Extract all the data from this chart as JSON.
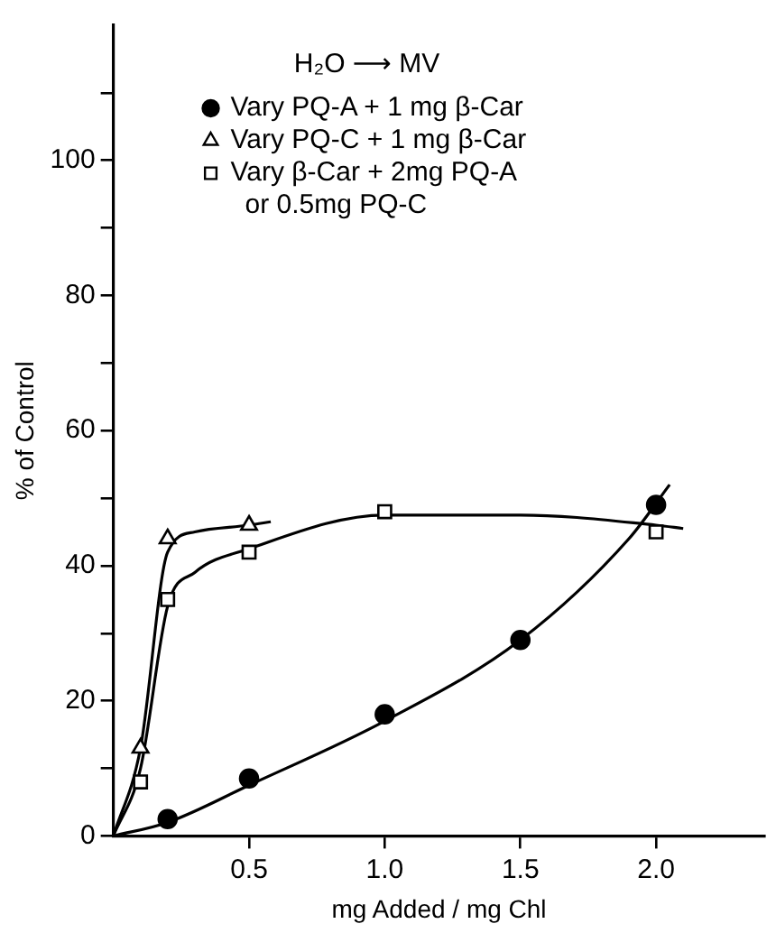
{
  "chart_data": {
    "type": "scatter",
    "xlabel": "mg Added / mg Chl",
    "ylabel": "% of Control",
    "legend_title": "H₂O ⟶ MV",
    "legend": "top",
    "grid": false,
    "xlim": [
      0,
      2.4
    ],
    "xticks": [
      0.5,
      {
        "value": 1,
        "label": "1.0"
      },
      1.5,
      {
        "value": 2,
        "label": "2.0"
      }
    ],
    "ylim": [
      0,
      120
    ],
    "yticks": [
      0,
      {
        "value": 10,
        "label": null
      },
      20,
      {
        "value": 30,
        "label": null
      },
      40,
      {
        "value": 50,
        "label": null
      },
      60,
      {
        "value": 70,
        "label": null
      },
      80,
      {
        "value": 90,
        "label": null
      },
      100,
      {
        "value": 110,
        "label": null
      }
    ],
    "series": [
      {
        "name": "Vary PQ-A + 1 mg β-Car",
        "type": "scatter",
        "marker": "circle",
        "color": "#000000",
        "x": [
          0.2,
          0.5,
          1.0,
          1.5,
          2.0
        ],
        "values": [
          2.5,
          8.5,
          18,
          29,
          49
        ]
      },
      {
        "name": "Vary PQ-C + 1 mg β-Car",
        "type": "scatter",
        "marker": "triangle",
        "color": "#000000",
        "x": [
          0.1,
          0.2,
          0.5
        ],
        "values": [
          13,
          44,
          46
        ]
      },
      {
        "name": "Vary β-Car + 2mg PQ-A or 0.5mg PQ-C",
        "type": "scatter",
        "marker": "square",
        "color": "#000000",
        "x": [
          0.1,
          0.2,
          0.5,
          1.0,
          2.0
        ],
        "values": [
          8,
          35,
          42,
          48,
          45
        ]
      },
      {
        "type": "line",
        "marker": "none",
        "color": "#000000",
        "x": [
          0,
          0.2,
          0.5,
          1.0,
          1.5,
          1.9,
          2.05
        ],
        "values": [
          0,
          2,
          7.5,
          17,
          29,
          44,
          52
        ]
      },
      {
        "type": "line",
        "marker": "none",
        "color": "#000000",
        "x": [
          0,
          0.1,
          0.2,
          0.3,
          0.5,
          0.58
        ],
        "values": [
          0,
          13,
          42,
          45,
          46,
          46.5
        ]
      },
      {
        "type": "line",
        "marker": "none",
        "color": "#000000",
        "x": [
          0,
          0.1,
          0.2,
          0.3,
          0.5,
          1.0,
          1.5,
          2.0,
          2.1
        ],
        "values": [
          0,
          10,
          34,
          39,
          42.5,
          47.5,
          47.5,
          46,
          45.5
        ]
      }
    ]
  }
}
